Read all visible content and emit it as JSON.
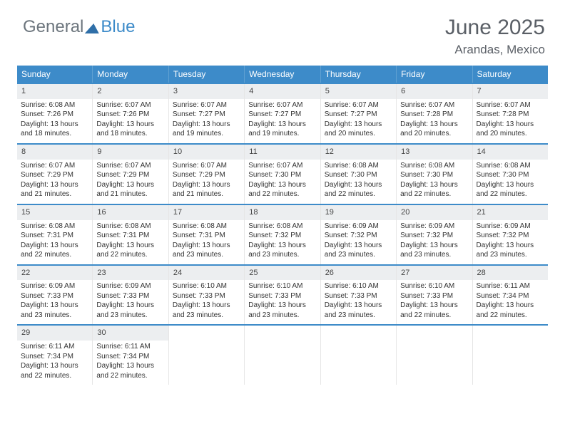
{
  "logo": {
    "text1": "General",
    "text2": "Blue"
  },
  "title": "June 2025",
  "location": "Arandas, Mexico",
  "colors": {
    "header_bg": "#3d8bc9",
    "week_border": "#3d8bc9",
    "daynum_bg": "#eceef0",
    "text": "#333333",
    "logo_gray": "#6c757d",
    "logo_blue": "#3d8bc9"
  },
  "weekdays": [
    "Sunday",
    "Monday",
    "Tuesday",
    "Wednesday",
    "Thursday",
    "Friday",
    "Saturday"
  ],
  "weeks": [
    [
      {
        "num": "1",
        "sunrise": "Sunrise: 6:08 AM",
        "sunset": "Sunset: 7:26 PM",
        "day1": "Daylight: 13 hours",
        "day2": "and 18 minutes."
      },
      {
        "num": "2",
        "sunrise": "Sunrise: 6:07 AM",
        "sunset": "Sunset: 7:26 PM",
        "day1": "Daylight: 13 hours",
        "day2": "and 18 minutes."
      },
      {
        "num": "3",
        "sunrise": "Sunrise: 6:07 AM",
        "sunset": "Sunset: 7:27 PM",
        "day1": "Daylight: 13 hours",
        "day2": "and 19 minutes."
      },
      {
        "num": "4",
        "sunrise": "Sunrise: 6:07 AM",
        "sunset": "Sunset: 7:27 PM",
        "day1": "Daylight: 13 hours",
        "day2": "and 19 minutes."
      },
      {
        "num": "5",
        "sunrise": "Sunrise: 6:07 AM",
        "sunset": "Sunset: 7:27 PM",
        "day1": "Daylight: 13 hours",
        "day2": "and 20 minutes."
      },
      {
        "num": "6",
        "sunrise": "Sunrise: 6:07 AM",
        "sunset": "Sunset: 7:28 PM",
        "day1": "Daylight: 13 hours",
        "day2": "and 20 minutes."
      },
      {
        "num": "7",
        "sunrise": "Sunrise: 6:07 AM",
        "sunset": "Sunset: 7:28 PM",
        "day1": "Daylight: 13 hours",
        "day2": "and 20 minutes."
      }
    ],
    [
      {
        "num": "8",
        "sunrise": "Sunrise: 6:07 AM",
        "sunset": "Sunset: 7:29 PM",
        "day1": "Daylight: 13 hours",
        "day2": "and 21 minutes."
      },
      {
        "num": "9",
        "sunrise": "Sunrise: 6:07 AM",
        "sunset": "Sunset: 7:29 PM",
        "day1": "Daylight: 13 hours",
        "day2": "and 21 minutes."
      },
      {
        "num": "10",
        "sunrise": "Sunrise: 6:07 AM",
        "sunset": "Sunset: 7:29 PM",
        "day1": "Daylight: 13 hours",
        "day2": "and 21 minutes."
      },
      {
        "num": "11",
        "sunrise": "Sunrise: 6:07 AM",
        "sunset": "Sunset: 7:30 PM",
        "day1": "Daylight: 13 hours",
        "day2": "and 22 minutes."
      },
      {
        "num": "12",
        "sunrise": "Sunrise: 6:08 AM",
        "sunset": "Sunset: 7:30 PM",
        "day1": "Daylight: 13 hours",
        "day2": "and 22 minutes."
      },
      {
        "num": "13",
        "sunrise": "Sunrise: 6:08 AM",
        "sunset": "Sunset: 7:30 PM",
        "day1": "Daylight: 13 hours",
        "day2": "and 22 minutes."
      },
      {
        "num": "14",
        "sunrise": "Sunrise: 6:08 AM",
        "sunset": "Sunset: 7:30 PM",
        "day1": "Daylight: 13 hours",
        "day2": "and 22 minutes."
      }
    ],
    [
      {
        "num": "15",
        "sunrise": "Sunrise: 6:08 AM",
        "sunset": "Sunset: 7:31 PM",
        "day1": "Daylight: 13 hours",
        "day2": "and 22 minutes."
      },
      {
        "num": "16",
        "sunrise": "Sunrise: 6:08 AM",
        "sunset": "Sunset: 7:31 PM",
        "day1": "Daylight: 13 hours",
        "day2": "and 22 minutes."
      },
      {
        "num": "17",
        "sunrise": "Sunrise: 6:08 AM",
        "sunset": "Sunset: 7:31 PM",
        "day1": "Daylight: 13 hours",
        "day2": "and 23 minutes."
      },
      {
        "num": "18",
        "sunrise": "Sunrise: 6:08 AM",
        "sunset": "Sunset: 7:32 PM",
        "day1": "Daylight: 13 hours",
        "day2": "and 23 minutes."
      },
      {
        "num": "19",
        "sunrise": "Sunrise: 6:09 AM",
        "sunset": "Sunset: 7:32 PM",
        "day1": "Daylight: 13 hours",
        "day2": "and 23 minutes."
      },
      {
        "num": "20",
        "sunrise": "Sunrise: 6:09 AM",
        "sunset": "Sunset: 7:32 PM",
        "day1": "Daylight: 13 hours",
        "day2": "and 23 minutes."
      },
      {
        "num": "21",
        "sunrise": "Sunrise: 6:09 AM",
        "sunset": "Sunset: 7:32 PM",
        "day1": "Daylight: 13 hours",
        "day2": "and 23 minutes."
      }
    ],
    [
      {
        "num": "22",
        "sunrise": "Sunrise: 6:09 AM",
        "sunset": "Sunset: 7:33 PM",
        "day1": "Daylight: 13 hours",
        "day2": "and 23 minutes."
      },
      {
        "num": "23",
        "sunrise": "Sunrise: 6:09 AM",
        "sunset": "Sunset: 7:33 PM",
        "day1": "Daylight: 13 hours",
        "day2": "and 23 minutes."
      },
      {
        "num": "24",
        "sunrise": "Sunrise: 6:10 AM",
        "sunset": "Sunset: 7:33 PM",
        "day1": "Daylight: 13 hours",
        "day2": "and 23 minutes."
      },
      {
        "num": "25",
        "sunrise": "Sunrise: 6:10 AM",
        "sunset": "Sunset: 7:33 PM",
        "day1": "Daylight: 13 hours",
        "day2": "and 23 minutes."
      },
      {
        "num": "26",
        "sunrise": "Sunrise: 6:10 AM",
        "sunset": "Sunset: 7:33 PM",
        "day1": "Daylight: 13 hours",
        "day2": "and 23 minutes."
      },
      {
        "num": "27",
        "sunrise": "Sunrise: 6:10 AM",
        "sunset": "Sunset: 7:33 PM",
        "day1": "Daylight: 13 hours",
        "day2": "and 22 minutes."
      },
      {
        "num": "28",
        "sunrise": "Sunrise: 6:11 AM",
        "sunset": "Sunset: 7:34 PM",
        "day1": "Daylight: 13 hours",
        "day2": "and 22 minutes."
      }
    ],
    [
      {
        "num": "29",
        "sunrise": "Sunrise: 6:11 AM",
        "sunset": "Sunset: 7:34 PM",
        "day1": "Daylight: 13 hours",
        "day2": "and 22 minutes."
      },
      {
        "num": "30",
        "sunrise": "Sunrise: 6:11 AM",
        "sunset": "Sunset: 7:34 PM",
        "day1": "Daylight: 13 hours",
        "day2": "and 22 minutes."
      },
      null,
      null,
      null,
      null,
      null
    ]
  ]
}
